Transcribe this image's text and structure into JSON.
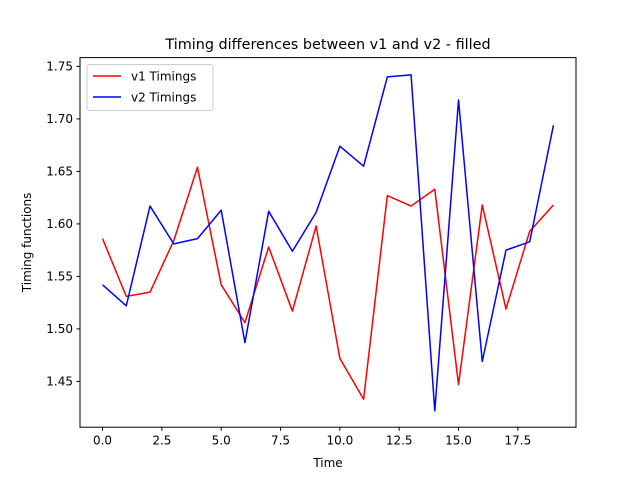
{
  "chart_data": {
    "type": "line",
    "title": "Timing differences between v1 and v2 - filled",
    "xlabel": "Time",
    "ylabel": "Timing functions",
    "xlim": [
      -0.95,
      19.95
    ],
    "ylim": [
      1.4064,
      1.7584
    ],
    "xticks": [
      0.0,
      2.5,
      5.0,
      7.5,
      10.0,
      12.5,
      15.0,
      17.5
    ],
    "xtick_labels": [
      "0.0",
      "2.5",
      "5.0",
      "7.5",
      "10.0",
      "12.5",
      "15.0",
      "17.5"
    ],
    "yticks": [
      1.45,
      1.5,
      1.55,
      1.6,
      1.65,
      1.7,
      1.75
    ],
    "ytick_labels": [
      "1.45",
      "1.50",
      "1.55",
      "1.60",
      "1.65",
      "1.70",
      "1.75"
    ],
    "grid": false,
    "legend_position": "top-left",
    "x": [
      0,
      1,
      2,
      3,
      4,
      5,
      6,
      7,
      8,
      9,
      10,
      11,
      12,
      13,
      14,
      15,
      16,
      17,
      18,
      19
    ],
    "series": [
      {
        "name": "v1 Timings",
        "color": "#ff0000",
        "values": [
          1.586,
          1.531,
          1.535,
          1.584,
          1.654,
          1.542,
          1.506,
          1.578,
          1.517,
          1.598,
          1.472,
          1.433,
          1.627,
          1.617,
          1.633,
          1.447,
          1.618,
          1.519,
          1.593,
          1.618
        ]
      },
      {
        "name": "v2 Timings",
        "color": "#0000ff",
        "values": [
          1.542,
          1.522,
          1.617,
          1.581,
          1.586,
          1.613,
          1.487,
          1.612,
          1.574,
          1.611,
          1.674,
          1.655,
          1.74,
          1.742,
          1.422,
          1.718,
          1.469,
          1.575,
          1.583,
          1.694
        ]
      }
    ]
  }
}
